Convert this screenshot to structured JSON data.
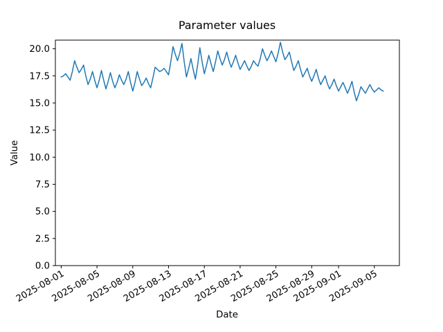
{
  "figure": {
    "background": "#ffffff",
    "frame_color": "#000000"
  },
  "chart_data": {
    "type": "line",
    "title": "Parameter values",
    "xlabel": "Date",
    "ylabel": "Value",
    "grid": false,
    "legend": null,
    "line_color": "#1f77b4",
    "line_width": 1.5,
    "ylim": [
      0,
      20.8
    ],
    "xlim_days": [
      -0.65,
      37.8
    ],
    "y_ticks": [
      {
        "value": 0.0,
        "label": "0.0"
      },
      {
        "value": 2.5,
        "label": "2.5"
      },
      {
        "value": 5.0,
        "label": "5.0"
      },
      {
        "value": 7.5,
        "label": "7.5"
      },
      {
        "value": 10.0,
        "label": "10.0"
      },
      {
        "value": 12.5,
        "label": "12.5"
      },
      {
        "value": 15.0,
        "label": "15.0"
      },
      {
        "value": 17.5,
        "label": "17.5"
      },
      {
        "value": 20.0,
        "label": "20.0"
      }
    ],
    "x_ticks": [
      {
        "day": 0,
        "label": "2025-08-01"
      },
      {
        "day": 4,
        "label": "2025-08-05"
      },
      {
        "day": 8,
        "label": "2025-08-09"
      },
      {
        "day": 12,
        "label": "2025-08-13"
      },
      {
        "day": 16,
        "label": "2025-08-17"
      },
      {
        "day": 20,
        "label": "2025-08-21"
      },
      {
        "day": 24,
        "label": "2025-08-25"
      },
      {
        "day": 28,
        "label": "2025-08-29"
      },
      {
        "day": 31,
        "label": "2025-09-01"
      },
      {
        "day": 35,
        "label": "2025-09-05"
      }
    ],
    "series_name": "Parameter values",
    "start_date": "2025-08-01",
    "end_date": "2025-09-06",
    "points_per_day": 4,
    "values": [
      17.4,
      17.5,
      17.7,
      17.4,
      17.1,
      17.9,
      18.9,
      18.3,
      17.8,
      18.1,
      18.5,
      17.5,
      16.7,
      17.2,
      17.9,
      17.1,
      16.4,
      17.1,
      18.0,
      17.1,
      16.3,
      17.0,
      17.8,
      17.0,
      16.4,
      16.9,
      17.6,
      17.1,
      16.7,
      17.2,
      17.9,
      16.9,
      16.1,
      16.9,
      17.9,
      17.2,
      16.6,
      16.9,
      17.3,
      16.8,
      16.4,
      17.3,
      18.3,
      18.1,
      17.9,
      18.0,
      18.2,
      17.9,
      17.6,
      18.8,
      20.2,
      19.5,
      18.9,
      19.6,
      20.5,
      18.8,
      17.4,
      18.2,
      19.1,
      18.1,
      17.2,
      18.5,
      20.1,
      18.8,
      17.7,
      18.5,
      19.4,
      18.6,
      17.9,
      18.8,
      19.8,
      19.1,
      18.5,
      19.0,
      19.7,
      18.9,
      18.3,
      18.8,
      19.4,
      18.7,
      18.1,
      18.5,
      18.9,
      18.4,
      18.0,
      18.4,
      18.9,
      18.6,
      18.4,
      19.1,
      20.0,
      19.4,
      18.9,
      19.3,
      19.8,
      19.3,
      18.8,
      19.6,
      20.6,
      19.7,
      19.0,
      19.3,
      19.7,
      18.8,
      18.0,
      18.4,
      18.9,
      18.1,
      17.4,
      17.8,
      18.2,
      17.5,
      17.0,
      17.5,
      18.1,
      17.3,
      16.7,
      17.1,
      17.5,
      16.8,
      16.3,
      16.7,
      17.2,
      16.6,
      16.1,
      16.5,
      16.9,
      16.4,
      15.9,
      16.4,
      17.0,
      16.0,
      15.2,
      15.8,
      16.5,
      16.2,
      15.9,
      16.3,
      16.7,
      16.3,
      16.0,
      16.2,
      16.4,
      16.2,
      16.1
    ]
  }
}
